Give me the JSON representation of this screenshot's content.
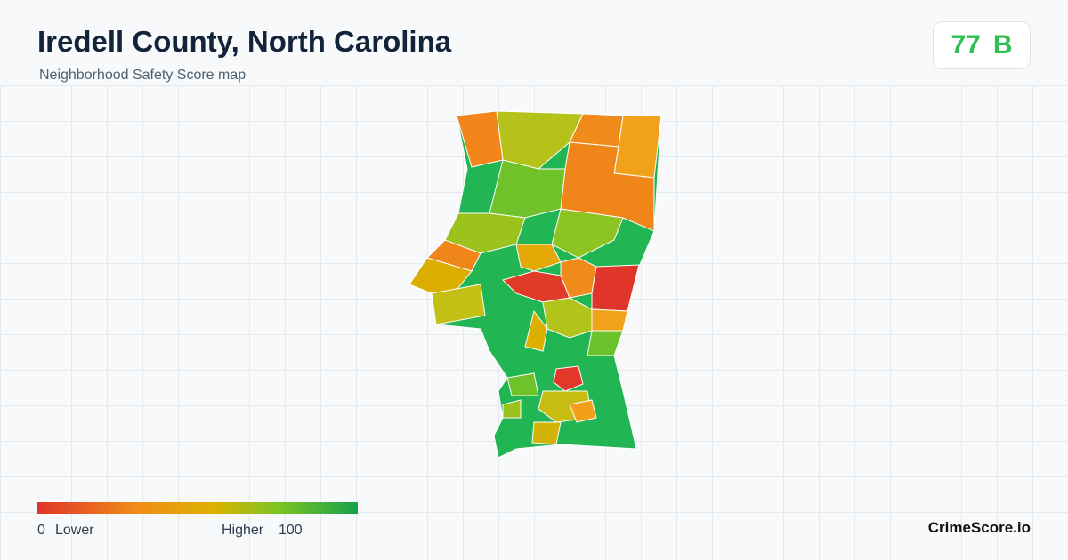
{
  "header": {
    "title": "Iredell County, North Carolina",
    "subtitle": "Neighborhood Safety Score map"
  },
  "score": {
    "value": 77,
    "grade": "B"
  },
  "legend": {
    "min": 0,
    "min_label": "Lower",
    "max_label": "Higher",
    "max": 100
  },
  "brand": "CrimeScore.io"
}
